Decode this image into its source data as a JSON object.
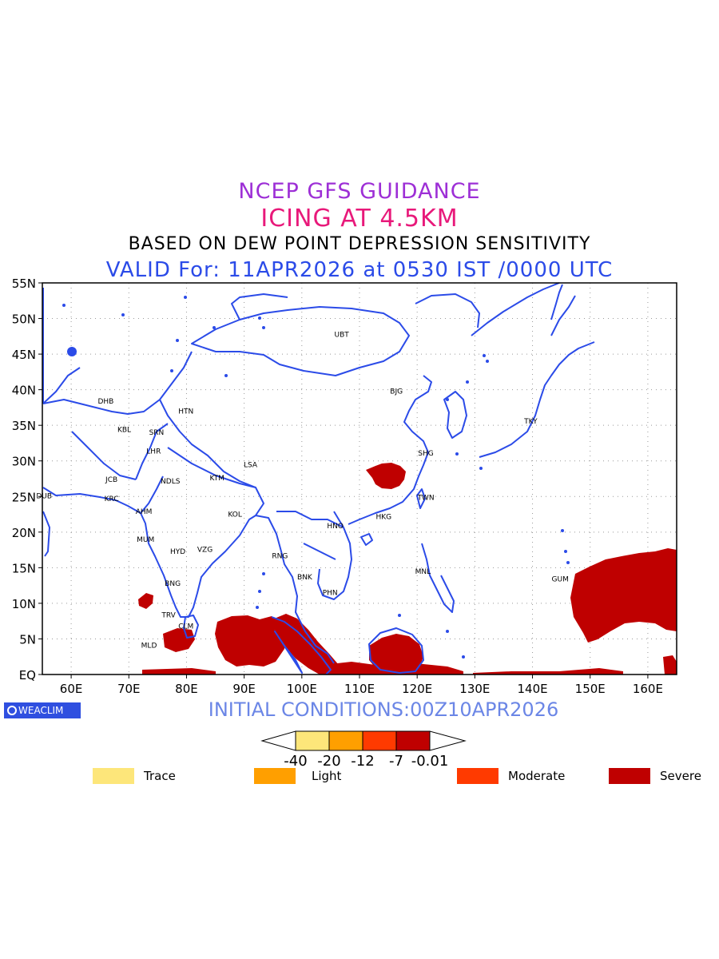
{
  "titles": {
    "line1": "NCEP GFS GUIDANCE",
    "line2": "ICING AT 4.5KM",
    "line3": "BASED ON DEW POINT DEPRESSION SENSITIVITY",
    "line4": "VALID For: 11APR2026 at 0530 IST /0000 UTC"
  },
  "axes": {
    "lat_labels": [
      "55N",
      "50N",
      "45N",
      "40N",
      "35N",
      "30N",
      "25N",
      "20N",
      "15N",
      "10N",
      "5N",
      "EQ"
    ],
    "lon_labels": [
      "60E",
      "70E",
      "80E",
      "90E",
      "100E",
      "110E",
      "120E",
      "130E",
      "140E",
      "150E",
      "160E"
    ]
  },
  "stations": [
    {
      "code": "UBT",
      "lon": 106.9,
      "lat": 47.9
    },
    {
      "code": "BJG",
      "lon": 116.4,
      "lat": 39.9
    },
    {
      "code": "DHB",
      "lon": 66.0,
      "lat": 38.5
    },
    {
      "code": "HTN",
      "lon": 79.9,
      "lat": 37.1
    },
    {
      "code": "KBL",
      "lon": 69.2,
      "lat": 34.5
    },
    {
      "code": "SRN",
      "lon": 74.8,
      "lat": 34.1
    },
    {
      "code": "TKY",
      "lon": 139.7,
      "lat": 35.7
    },
    {
      "code": "LHR",
      "lon": 74.3,
      "lat": 31.5
    },
    {
      "code": "SHG",
      "lon": 121.5,
      "lat": 31.2
    },
    {
      "code": "LSA",
      "lon": 91.1,
      "lat": 29.6
    },
    {
      "code": "JCB",
      "lon": 67.0,
      "lat": 27.5
    },
    {
      "code": "NDLS",
      "lon": 77.2,
      "lat": 27.3
    },
    {
      "code": "KTM",
      "lon": 85.3,
      "lat": 27.7
    },
    {
      "code": "DUB",
      "lon": 55.3,
      "lat": 25.2
    },
    {
      "code": "KRC",
      "lon": 67.0,
      "lat": 24.8
    },
    {
      "code": "TWN",
      "lon": 121.5,
      "lat": 25.0
    },
    {
      "code": "AHM",
      "lon": 72.6,
      "lat": 23.0
    },
    {
      "code": "KOL",
      "lon": 88.4,
      "lat": 22.6
    },
    {
      "code": "HKG",
      "lon": 114.2,
      "lat": 22.3
    },
    {
      "code": "HNO",
      "lon": 105.8,
      "lat": 21.0
    },
    {
      "code": "MUM",
      "lon": 72.9,
      "lat": 19.1
    },
    {
      "code": "HYD",
      "lon": 78.5,
      "lat": 17.4
    },
    {
      "code": "VZG",
      "lon": 83.2,
      "lat": 17.7
    },
    {
      "code": "RNG",
      "lon": 96.2,
      "lat": 16.8
    },
    {
      "code": "MNL",
      "lon": 121.0,
      "lat": 14.6
    },
    {
      "code": "GUM",
      "lon": 144.8,
      "lat": 13.5
    },
    {
      "code": "BNK",
      "lon": 100.5,
      "lat": 13.8
    },
    {
      "code": "BNG",
      "lon": 77.6,
      "lat": 12.9
    },
    {
      "code": "PHN",
      "lon": 104.9,
      "lat": 11.6
    },
    {
      "code": "TRV",
      "lon": 76.9,
      "lat": 8.5
    },
    {
      "code": "CLM",
      "lon": 79.9,
      "lat": 6.9
    },
    {
      "code": "MLD",
      "lon": 73.5,
      "lat": 4.2
    }
  ],
  "logo": "WEACLIM",
  "initial_conditions": "INITIAL CONDITIONS:00Z10APR2026",
  "colorbar": {
    "ticks": [
      "-40",
      "-20",
      "-12",
      "-7",
      "-0.01"
    ],
    "colors": [
      "#fde67a",
      "#ff9f00",
      "#ff3a00",
      "#bf0000"
    ]
  },
  "legend": [
    {
      "label": "Trace",
      "color": "#fde67a"
    },
    {
      "label": "Light",
      "color": "#ff9f00"
    },
    {
      "label": "Moderate",
      "color": "#ff3a00"
    },
    {
      "label": "Severe",
      "color": "#bf0000"
    }
  ],
  "colors": {
    "coast": "#2b4be8",
    "severe": "#bf0000",
    "moderate": "#ff3a00"
  }
}
